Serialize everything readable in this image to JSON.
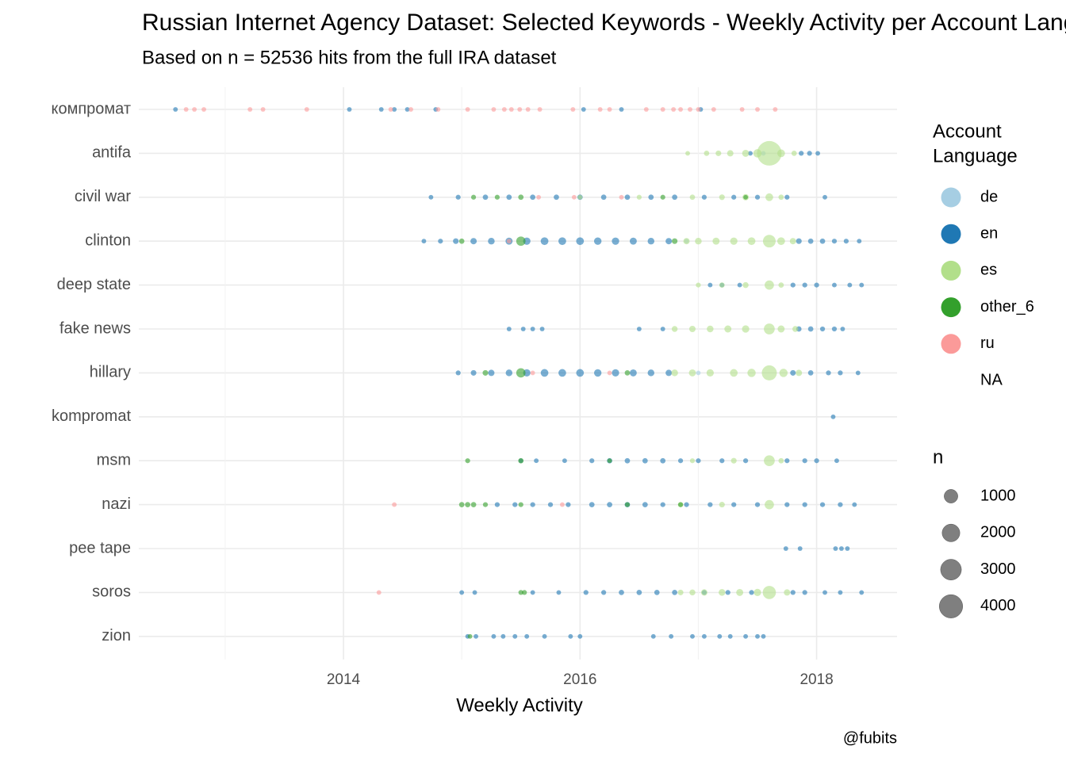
{
  "chart_data": {
    "type": "scatter",
    "title": "Russian Internet Agency Dataset: Selected Keywords - Weekly Activity per Account Language",
    "subtitle": "Based on n = 52536 hits from the full IRA dataset",
    "x_label": "Weekly Activity",
    "caption": "@fubits",
    "color_legend_title": [
      "Account",
      "Language"
    ],
    "size_legend_title": "n",
    "size_breaks": [
      1000,
      2000,
      3000,
      4000
    ],
    "categories": [
      "компромат",
      "antifa",
      "civil war",
      "clinton",
      "deep state",
      "fake news",
      "hillary",
      "kompromat",
      "msm",
      "nazi",
      "pee tape",
      "soros",
      "zion"
    ],
    "xlim": [
      2012.27,
      2018.68
    ],
    "xticks": [
      2014,
      2016,
      2018
    ],
    "xminor": [
      2013,
      2015,
      2017
    ],
    "grid": true,
    "opacity": 0.6,
    "series": [
      {
        "name": "de",
        "color": "#a6cee3",
        "x": [
          2016.9,
          2017.0,
          2017.55
        ],
        "y": [
          "clinton",
          "hillary",
          "antifa"
        ],
        "size": [
          5,
          5,
          5
        ]
      },
      {
        "name": "en",
        "color": "#1f78b4",
        "x": [
          2012.58,
          2014.05,
          2014.32,
          2014.43,
          2014.54,
          2014.78,
          2016.03,
          2016.35,
          2017.02,
          2017.44,
          2017.87,
          2017.94,
          2018.01,
          2014.74,
          2014.97,
          2015.2,
          2015.4,
          2015.6,
          2015.8,
          2016.0,
          2016.2,
          2016.4,
          2016.6,
          2016.8,
          2017.05,
          2017.3,
          2017.5,
          2017.75,
          2018.07,
          2014.68,
          2014.82,
          2014.95,
          2015.1,
          2015.25,
          2015.4,
          2015.55,
          2015.7,
          2015.85,
          2016.0,
          2016.15,
          2016.3,
          2016.45,
          2016.6,
          2016.75,
          2017.85,
          2017.95,
          2018.05,
          2018.15,
          2018.25,
          2018.36,
          2017.1,
          2017.2,
          2017.35,
          2017.8,
          2017.9,
          2018.0,
          2018.15,
          2018.28,
          2018.38,
          2015.4,
          2015.52,
          2015.6,
          2015.68,
          2016.5,
          2016.7,
          2017.85,
          2017.95,
          2018.05,
          2018.15,
          2018.22,
          2014.97,
          2015.1,
          2015.25,
          2015.4,
          2015.55,
          2015.7,
          2015.85,
          2016.0,
          2016.15,
          2016.3,
          2016.45,
          2016.6,
          2016.75,
          2017.8,
          2017.95,
          2018.1,
          2018.2,
          2018.35,
          2018.14,
          2015.5,
          2015.63,
          2015.87,
          2016.1,
          2016.25,
          2016.4,
          2016.55,
          2016.7,
          2016.85,
          2017.0,
          2017.2,
          2017.4,
          2017.75,
          2017.9,
          2018.0,
          2018.17,
          2015.3,
          2015.45,
          2015.6,
          2015.75,
          2015.9,
          2016.1,
          2016.25,
          2016.4,
          2016.55,
          2016.7,
          2016.9,
          2017.1,
          2017.3,
          2017.5,
          2017.75,
          2017.9,
          2018.05,
          2018.2,
          2018.32,
          2017.74,
          2017.86,
          2018.16,
          2018.21,
          2018.26,
          2015.0,
          2015.11,
          2015.6,
          2015.82,
          2016.05,
          2016.2,
          2016.35,
          2016.5,
          2016.65,
          2016.8,
          2017.05,
          2017.25,
          2017.45,
          2017.8,
          2017.9,
          2018.07,
          2018.2,
          2018.38,
          2015.05,
          2015.12,
          2015.27,
          2015.35,
          2015.45,
          2015.55,
          2015.7,
          2015.92,
          2016.0,
          2016.62,
          2016.77,
          2016.95,
          2017.05,
          2017.18,
          2017.27,
          2017.4,
          2017.5,
          2017.55
        ],
        "y": [
          "компромат",
          "компромат",
          "компромат",
          "компромат",
          "компромат",
          "компромат",
          "компромат",
          "компромат",
          "компромат",
          "antifa",
          "antifa",
          "antifa",
          "antifa",
          "civil war",
          "civil war",
          "civil war",
          "civil war",
          "civil war",
          "civil war",
          "civil war",
          "civil war",
          "civil war",
          "civil war",
          "civil war",
          "civil war",
          "civil war",
          "civil war",
          "civil war",
          "civil war",
          "clinton",
          "clinton",
          "clinton",
          "clinton",
          "clinton",
          "clinton",
          "clinton",
          "clinton",
          "clinton",
          "clinton",
          "clinton",
          "clinton",
          "clinton",
          "clinton",
          "clinton",
          "clinton",
          "clinton",
          "clinton",
          "clinton",
          "clinton",
          "clinton",
          "deep state",
          "deep state",
          "deep state",
          "deep state",
          "deep state",
          "deep state",
          "deep state",
          "deep state",
          "deep state",
          "fake news",
          "fake news",
          "fake news",
          "fake news",
          "fake news",
          "fake news",
          "fake news",
          "fake news",
          "fake news",
          "fake news",
          "fake news",
          "hillary",
          "hillary",
          "hillary",
          "hillary",
          "hillary",
          "hillary",
          "hillary",
          "hillary",
          "hillary",
          "hillary",
          "hillary",
          "hillary",
          "hillary",
          "hillary",
          "hillary",
          "hillary",
          "hillary",
          "hillary",
          "kompromat",
          "msm",
          "msm",
          "msm",
          "msm",
          "msm",
          "msm",
          "msm",
          "msm",
          "msm",
          "msm",
          "msm",
          "msm",
          "msm",
          "msm",
          "msm",
          "msm",
          "nazi",
          "nazi",
          "nazi",
          "nazi",
          "nazi",
          "nazi",
          "nazi",
          "nazi",
          "nazi",
          "nazi",
          "nazi",
          "nazi",
          "nazi",
          "nazi",
          "nazi",
          "nazi",
          "nazi",
          "nazi",
          "nazi",
          "pee tape",
          "pee tape",
          "pee tape",
          "pee tape",
          "pee tape",
          "soros",
          "soros",
          "soros",
          "soros",
          "soros",
          "soros",
          "soros",
          "soros",
          "soros",
          "soros",
          "soros",
          "soros",
          "soros",
          "soros",
          "soros",
          "soros",
          "soros",
          "soros",
          "zion",
          "zion",
          "zion",
          "zion",
          "zion",
          "zion",
          "zion",
          "zion",
          "zion",
          "zion",
          "zion",
          "zion",
          "zion",
          "zion",
          "zion",
          "zion",
          "zion",
          "zion"
        ],
        "size": [
          5,
          5,
          5,
          5,
          5,
          5,
          5,
          5,
          5,
          5,
          10,
          10,
          5,
          5,
          10,
          20,
          20,
          20,
          20,
          20,
          20,
          20,
          20,
          20,
          10,
          10,
          10,
          10,
          5,
          5,
          10,
          30,
          60,
          80,
          100,
          120,
          150,
          150,
          150,
          130,
          120,
          100,
          80,
          60,
          30,
          20,
          20,
          10,
          10,
          5,
          5,
          5,
          5,
          10,
          10,
          10,
          5,
          5,
          5,
          5,
          5,
          5,
          5,
          5,
          5,
          20,
          20,
          10,
          10,
          5,
          10,
          30,
          60,
          80,
          120,
          150,
          150,
          150,
          130,
          120,
          100,
          80,
          60,
          30,
          20,
          10,
          10,
          5,
          5,
          5,
          5,
          5,
          10,
          20,
          20,
          20,
          20,
          10,
          10,
          10,
          10,
          10,
          10,
          10,
          5,
          10,
          10,
          10,
          10,
          10,
          20,
          20,
          20,
          20,
          10,
          10,
          10,
          10,
          10,
          10,
          10,
          10,
          10,
          5,
          5,
          5,
          5,
          5,
          5,
          5,
          5,
          5,
          5,
          10,
          10,
          20,
          20,
          20,
          20,
          10,
          10,
          10,
          10,
          10,
          5,
          5,
          5,
          5,
          5,
          5,
          5,
          5,
          5,
          5,
          5,
          5,
          5,
          5,
          5,
          5,
          5,
          5,
          5,
          5,
          5
        ]
      },
      {
        "name": "es",
        "color": "#b2df8a",
        "x": [
          2016.91,
          2017.07,
          2017.17,
          2017.27,
          2017.4,
          2017.5,
          2017.6,
          2017.7,
          2017.81,
          2016.0,
          2016.5,
          2016.95,
          2017.2,
          2017.4,
          2017.6,
          2017.7,
          2016.9,
          2017.0,
          2017.15,
          2017.3,
          2017.45,
          2017.6,
          2017.7,
          2017.8,
          2017.0,
          2017.2,
          2017.4,
          2017.6,
          2017.7,
          2016.8,
          2016.95,
          2017.1,
          2017.25,
          2017.4,
          2017.6,
          2017.7,
          2017.82,
          2016.8,
          2016.95,
          2017.1,
          2017.3,
          2017.45,
          2017.6,
          2017.72,
          2017.85,
          2016.95,
          2017.3,
          2017.6,
          2017.7,
          2016.85,
          2017.2,
          2017.6,
          2016.85,
          2016.95,
          2017.05,
          2017.2,
          2017.35,
          2017.5,
          2017.6,
          2017.75
        ],
        "y": [
          "antifa",
          "antifa",
          "antifa",
          "antifa",
          "antifa",
          "antifa",
          "antifa",
          "antifa",
          "antifa",
          "civil war",
          "civil war",
          "civil war",
          "civil war",
          "civil war",
          "civil war",
          "civil war",
          "clinton",
          "clinton",
          "clinton",
          "clinton",
          "clinton",
          "clinton",
          "clinton",
          "clinton",
          "deep state",
          "deep state",
          "deep state",
          "deep state",
          "deep state",
          "fake news",
          "fake news",
          "fake news",
          "fake news",
          "fake news",
          "fake news",
          "fake news",
          "fake news",
          "hillary",
          "hillary",
          "hillary",
          "hillary",
          "hillary",
          "hillary",
          "hillary",
          "hillary",
          "msm",
          "msm",
          "msm",
          "msm",
          "nazi",
          "nazi",
          "nazi",
          "soros",
          "soros",
          "soros",
          "soros",
          "soros",
          "soros",
          "soros",
          "soros"
        ],
        "size": [
          5,
          20,
          30,
          60,
          100,
          200,
          4500,
          150,
          20,
          5,
          10,
          20,
          30,
          60,
          150,
          20,
          60,
          80,
          100,
          120,
          150,
          800,
          150,
          60,
          10,
          20,
          40,
          300,
          20,
          40,
          60,
          80,
          100,
          120,
          500,
          100,
          40,
          80,
          100,
          120,
          150,
          200,
          1300,
          200,
          60,
          10,
          30,
          500,
          20,
          20,
          30,
          300,
          30,
          40,
          60,
          80,
          100,
          120,
          900,
          60
        ]
      },
      {
        "name": "other_6",
        "color": "#33a02c",
        "x": [
          2015.1,
          2015.3,
          2015.5,
          2016.7,
          2017.4,
          2015.0,
          2015.5,
          2016.8,
          2015.2,
          2015.5,
          2016.4,
          2015.05,
          2015.5,
          2016.25,
          2015.0,
          2015.05,
          2015.1,
          2015.2,
          2015.5,
          2016.4,
          2016.85,
          2015.5,
          2015.53,
          2015.07
        ],
        "y": [
          "civil war",
          "civil war",
          "civil war",
          "civil war",
          "civil war",
          "clinton",
          "clinton",
          "clinton",
          "hillary",
          "hillary",
          "hillary",
          "msm",
          "msm",
          "msm",
          "nazi",
          "nazi",
          "nazi",
          "nazi",
          "nazi",
          "nazi",
          "nazi",
          "soros",
          "soros",
          "zion"
        ],
        "size": [
          10,
          10,
          20,
          10,
          5,
          20,
          300,
          30,
          30,
          300,
          20,
          10,
          20,
          5,
          20,
          20,
          20,
          10,
          10,
          10,
          10,
          10,
          10,
          5
        ]
      },
      {
        "name": "ru",
        "color": "#fb9a99",
        "x": [
          2012.67,
          2012.74,
          2012.82,
          2013.21,
          2013.32,
          2013.69,
          2014.4,
          2014.57,
          2014.8,
          2015.05,
          2015.27,
          2015.36,
          2015.42,
          2015.49,
          2015.56,
          2015.66,
          2015.94,
          2016.17,
          2016.25,
          2016.56,
          2016.7,
          2016.79,
          2016.85,
          2016.93,
          2017.0,
          2017.13,
          2017.37,
          2017.5,
          2017.65,
          2015.65,
          2015.95,
          2016.35,
          2015.6,
          2016.25,
          2014.43,
          2015.85,
          2014.3,
          2015.4
        ],
        "y": [
          "компромат",
          "компромат",
          "компромат",
          "компромат",
          "компромат",
          "компромат",
          "компромат",
          "компромат",
          "компромат",
          "компромат",
          "компромат",
          "компромат",
          "компромат",
          "компромат",
          "компромат",
          "компромат",
          "компромат",
          "компромат",
          "компромат",
          "компромат",
          "компромат",
          "компромат",
          "компромат",
          "компромат",
          "компромат",
          "компромат",
          "компромат",
          "компромат",
          "компромат",
          "civil war",
          "civil war",
          "civil war",
          "hillary",
          "hillary",
          "nazi",
          "nazi",
          "soros",
          "clinton"
        ],
        "size": [
          5,
          5,
          5,
          5,
          5,
          5,
          5,
          5,
          5,
          5,
          5,
          5,
          5,
          5,
          5,
          5,
          5,
          5,
          5,
          5,
          5,
          5,
          5,
          5,
          5,
          5,
          5,
          5,
          5,
          5,
          5,
          5,
          5,
          5,
          5,
          5,
          5,
          5
        ]
      },
      {
        "name": "NA",
        "color": null,
        "x": [],
        "y": [],
        "size": []
      }
    ]
  }
}
